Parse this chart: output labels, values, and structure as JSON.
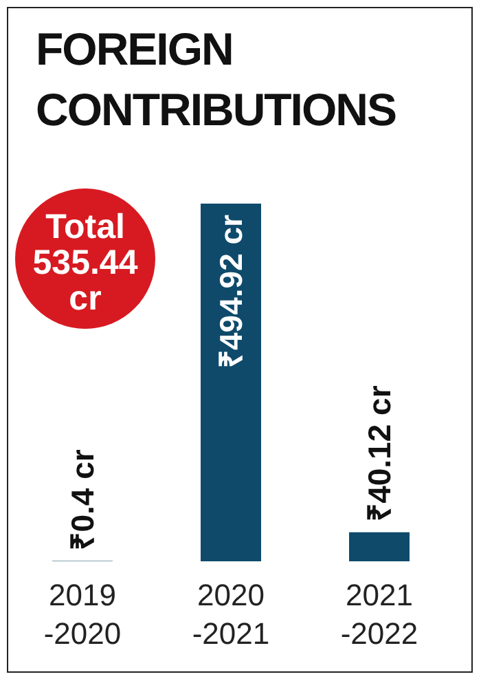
{
  "chart_data": {
    "type": "bar",
    "title": "FOREIGN\nCONTRIBUTIONS",
    "categories": [
      "2019\n-2020",
      "2020\n-2021",
      "2021\n-2022"
    ],
    "values": [
      0.4,
      494.92,
      40.12
    ],
    "value_labels": [
      "₹0.4 cr",
      "₹494.92 cr",
      "₹40.12 cr"
    ],
    "color": "#0f4a6b",
    "annotations": [
      "Total\n535.44\ncr"
    ]
  }
}
